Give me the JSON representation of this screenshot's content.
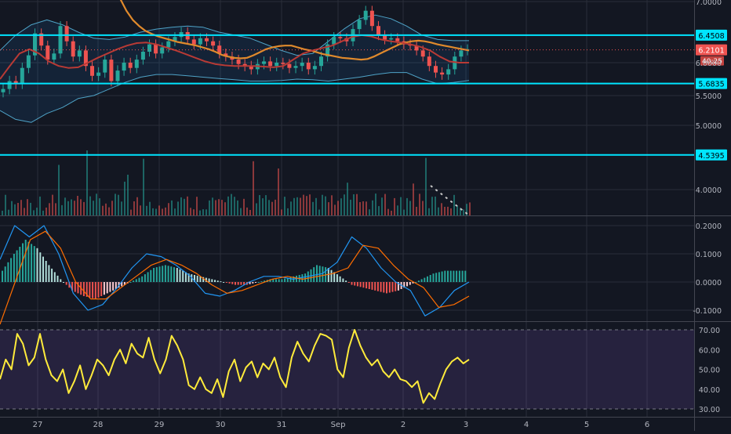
{
  "chart_data": [
    {
      "panel": "price",
      "type": "candlestick",
      "x_tick_labels": [
        "27",
        "28",
        "29",
        "30",
        "31",
        "Sep",
        "2",
        "3",
        "4",
        "5",
        "6"
      ],
      "y_tick_labels": [
        "7.0000",
        "6.0000",
        "5.5000",
        "5.0000",
        "4.0000"
      ],
      "ylim": [
        3.8,
        7.05
      ],
      "grid": true,
      "horizontal_levels": [
        {
          "label": "6.4508",
          "value": 6.4508,
          "color": "#00e5ff"
        },
        {
          "label": "5.6835",
          "value": 5.6835,
          "color": "#00e5ff"
        },
        {
          "label": "4.5395",
          "value": 4.5395,
          "color": "#00e5ff"
        }
      ],
      "last_price": {
        "label": "6.2101",
        "value": 6.2101,
        "color": "#ef5350"
      },
      "countdown": "40:25",
      "bull_color": "#26a69a",
      "bear_color": "#ef5350",
      "close_series": [
        5.6,
        5.72,
        5.68,
        5.92,
        6.12,
        6.48,
        6.28,
        6.05,
        6.15,
        6.6,
        6.35,
        6.1,
        6.2,
        5.95,
        5.8,
        5.85,
        6.05,
        5.72,
        5.88,
        6.0,
        5.92,
        6.05,
        6.18,
        6.3,
        6.15,
        6.25,
        6.35,
        6.42,
        6.5,
        6.38,
        6.3,
        6.4,
        6.35,
        6.28,
        6.15,
        6.1,
        6.05,
        5.98,
        5.95,
        5.9,
        5.98,
        6.02,
        5.95,
        6.0,
        5.98,
        5.92,
        5.95,
        6.0,
        5.9,
        5.95,
        6.1,
        6.3,
        6.42,
        6.4,
        6.35,
        6.55,
        6.7,
        6.85,
        6.6,
        6.45,
        6.38,
        6.4,
        6.35,
        6.3,
        6.28,
        6.2,
        6.1,
        5.95,
        5.85,
        5.82,
        5.9,
        6.1,
        6.2,
        6.22
      ],
      "ma_orange": [
        7.3,
        7.05,
        6.85,
        6.7,
        6.6,
        6.52,
        6.47,
        6.43,
        6.4,
        6.37,
        6.34,
        6.32,
        6.3,
        6.28,
        6.25,
        6.22,
        6.18,
        6.13,
        6.1,
        6.08,
        6.07,
        6.08,
        6.12,
        6.17,
        6.22,
        6.25,
        6.27,
        6.28,
        6.28,
        6.25,
        6.22,
        6.2,
        6.17,
        6.14,
        6.12,
        6.1,
        6.08,
        6.07,
        6.06,
        6.05,
        6.06,
        6.1,
        6.15,
        6.2,
        6.25,
        6.3,
        6.33,
        6.35,
        6.36,
        6.35,
        6.33,
        6.3,
        6.28,
        6.26,
        6.24,
        6.22,
        6.2
      ],
      "ma_red": [
        5.75,
        5.95,
        6.15,
        6.22,
        6.15,
        6.02,
        5.95,
        5.92,
        5.93,
        6.0,
        6.08,
        6.15,
        6.22,
        6.28,
        6.32,
        6.33,
        6.3,
        6.25,
        6.2,
        6.14,
        6.08,
        6.02,
        5.98,
        5.96,
        5.95,
        5.95,
        5.95,
        5.94,
        5.93,
        5.95,
        6.05,
        6.15,
        6.2,
        6.24,
        6.28,
        6.35,
        6.42,
        6.45,
        6.43,
        6.38,
        6.35,
        6.33,
        6.3,
        6.26,
        6.2,
        6.1,
        6.02,
        6.0,
        6.0
      ],
      "bb_upper": [
        6.2,
        6.45,
        6.62,
        6.7,
        6.62,
        6.5,
        6.4,
        6.38,
        6.42,
        6.5,
        6.55,
        6.58,
        6.6,
        6.58,
        6.5,
        6.45,
        6.4,
        6.3,
        6.2,
        6.12,
        6.15,
        6.35,
        6.55,
        6.72,
        6.78,
        6.72,
        6.6,
        6.45,
        6.38,
        6.36,
        6.36
      ],
      "bb_lower": [
        5.25,
        5.1,
        5.05,
        5.2,
        5.3,
        5.45,
        5.5,
        5.6,
        5.7,
        5.78,
        5.82,
        5.82,
        5.8,
        5.78,
        5.76,
        5.74,
        5.72,
        5.72,
        5.73,
        5.75,
        5.74,
        5.72,
        5.75,
        5.78,
        5.82,
        5.85,
        5.85,
        5.75,
        5.68,
        5.7,
        5.73
      ]
    },
    {
      "panel": "macd",
      "type": "histogram+line",
      "y_tick_labels": [
        "0.2000",
        "0.1000",
        "0.0000",
        "-0.1000"
      ],
      "ylim": [
        -0.15,
        0.22
      ],
      "histogram": [
        0.04,
        0.1,
        0.15,
        0.12,
        0.06,
        0.01,
        -0.03,
        -0.05,
        -0.06,
        -0.04,
        -0.02,
        0.0,
        0.02,
        0.05,
        0.06,
        0.05,
        0.03,
        0.02,
        0.01,
        0.0,
        -0.01,
        -0.01,
        0.0,
        0.01,
        0.01,
        0.02,
        0.03,
        0.06,
        0.05,
        0.02,
        -0.01,
        -0.02,
        -0.03,
        -0.04,
        -0.03,
        -0.01,
        0.01,
        0.03,
        0.04,
        0.04
      ],
      "macd_line": [
        0.08,
        0.2,
        0.16,
        0.2,
        0.1,
        -0.04,
        -0.1,
        -0.08,
        -0.02,
        0.05,
        0.1,
        0.09,
        0.06,
        0.02,
        -0.04,
        -0.05,
        -0.03,
        0.0,
        0.02,
        0.02,
        0.01,
        0.02,
        0.03,
        0.07,
        0.16,
        0.12,
        0.05,
        0.0,
        -0.03,
        -0.12,
        -0.09,
        -0.03,
        0.0
      ],
      "signal_line": [
        -0.15,
        0.0,
        0.15,
        0.18,
        0.12,
        0.0,
        -0.06,
        -0.06,
        -0.02,
        0.02,
        0.06,
        0.08,
        0.06,
        0.03,
        -0.01,
        -0.04,
        -0.03,
        -0.01,
        0.01,
        0.02,
        0.01,
        0.02,
        0.03,
        0.05,
        0.13,
        0.12,
        0.06,
        0.01,
        -0.02,
        -0.09,
        -0.08,
        -0.05
      ],
      "macd_color": "#2196f3",
      "signal_color": "#ff6d00"
    },
    {
      "panel": "rsi",
      "type": "line",
      "y_tick_labels": [
        "70.00",
        "60.00",
        "50.00",
        "40.00",
        "30.00"
      ],
      "ylim": [
        28,
        72
      ],
      "band": [
        30,
        70
      ],
      "values": [
        45,
        55,
        50,
        68,
        63,
        52,
        56,
        68,
        55,
        47,
        44,
        50,
        38,
        44,
        52,
        40,
        47,
        55,
        52,
        47,
        55,
        60,
        53,
        63,
        58,
        56,
        66,
        55,
        48,
        55,
        67,
        62,
        55,
        42,
        40,
        46,
        40,
        38,
        45,
        36,
        49,
        55,
        44,
        51,
        54,
        46,
        53,
        50,
        56,
        46,
        41,
        56,
        64,
        58,
        54,
        62,
        68,
        67,
        65,
        50,
        46,
        61,
        70,
        62,
        56,
        52,
        55,
        49,
        46,
        50,
        45,
        44,
        41,
        44,
        33,
        38,
        35,
        43,
        50,
        54,
        56,
        53,
        55
      ],
      "line_color": "#ffeb3b"
    }
  ]
}
